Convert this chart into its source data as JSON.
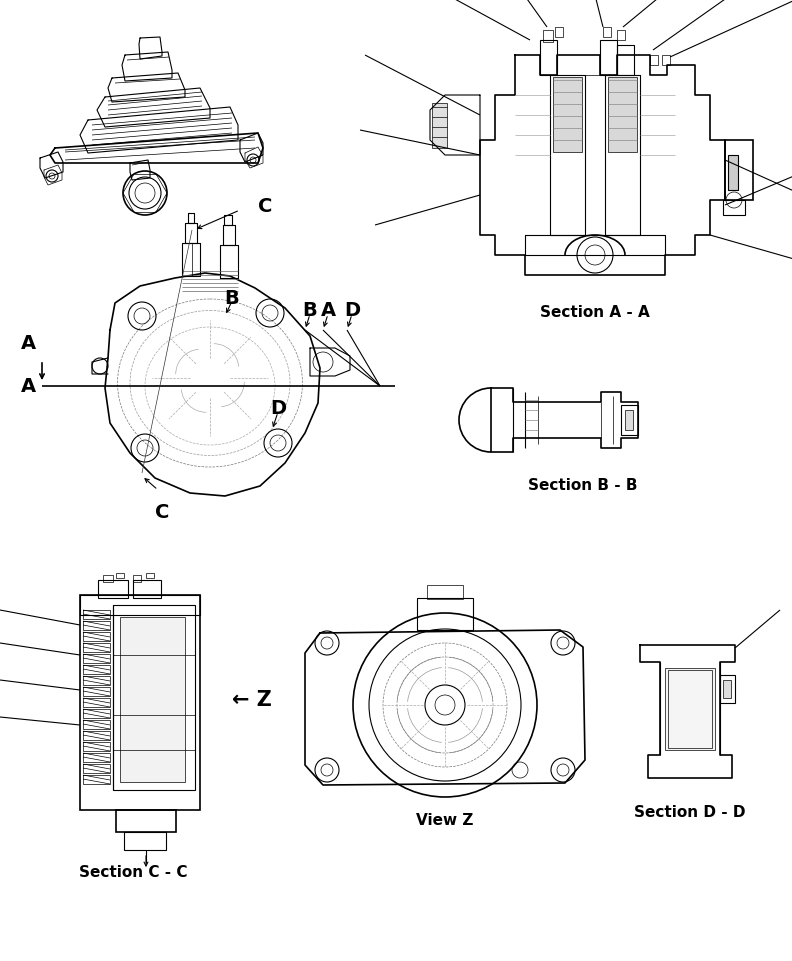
{
  "bg_color": "#ffffff",
  "fig_width": 7.92,
  "fig_height": 9.61,
  "dpi": 100,
  "labels": {
    "section_a": "Section A - A",
    "section_b": "Section B - B",
    "section_c": "Section C - C",
    "section_d": "Section D - D",
    "view_z": "View Z",
    "arrow_z": "← Z"
  },
  "font_section": 11,
  "font_label": 14
}
